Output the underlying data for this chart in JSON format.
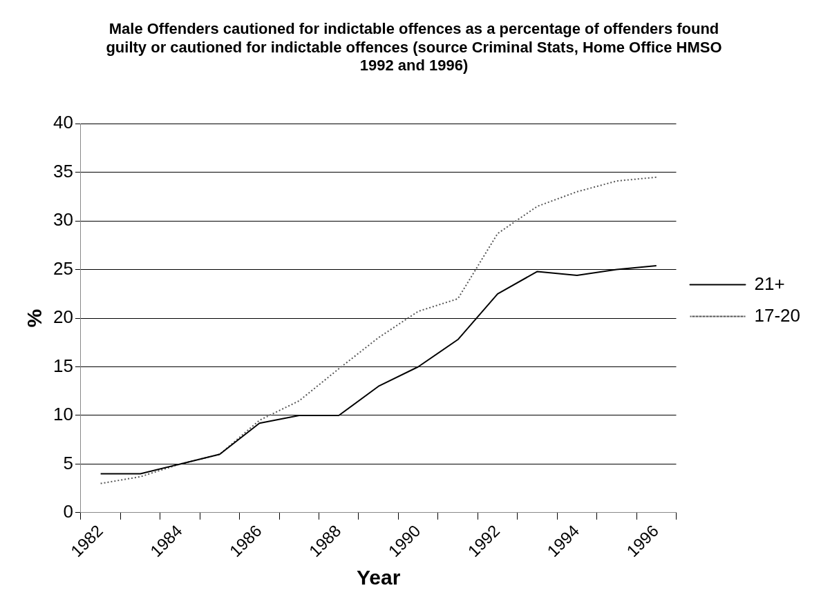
{
  "chart_data": {
    "type": "line",
    "title": "Male Offenders cautioned for indictable offences as a percentage of offenders found guilty or cautioned for indictable offences (source Criminal Stats, Home Office HMSO 1992 and 1996)",
    "xlabel": "Year",
    "ylabel": "%",
    "categories": [
      "1982",
      null,
      "1984",
      null,
      "1986",
      null,
      "1988",
      null,
      "1990",
      null,
      "1992",
      null,
      "1994",
      null,
      "1996"
    ],
    "series": [
      {
        "name": "21+",
        "color": "#000000",
        "line_style": "solid",
        "values": [
          4,
          4,
          5,
          6,
          9.2,
          10,
          10,
          13,
          15,
          17.8,
          22.5,
          24.8,
          24.4,
          25,
          25.4
        ]
      },
      {
        "name": "17-20",
        "color": "#555555",
        "line_style": "dotted",
        "values": [
          3,
          3.7,
          5,
          6,
          9.5,
          11.5,
          14.8,
          18,
          20.7,
          22,
          28.7,
          31.5,
          33,
          34.1,
          34.5
        ]
      }
    ],
    "ylim": [
      0,
      40
    ],
    "yticks": [
      0,
      5,
      10,
      15,
      20,
      25,
      30,
      35,
      40
    ],
    "grid": "y",
    "legend": "right",
    "marker": "none"
  }
}
